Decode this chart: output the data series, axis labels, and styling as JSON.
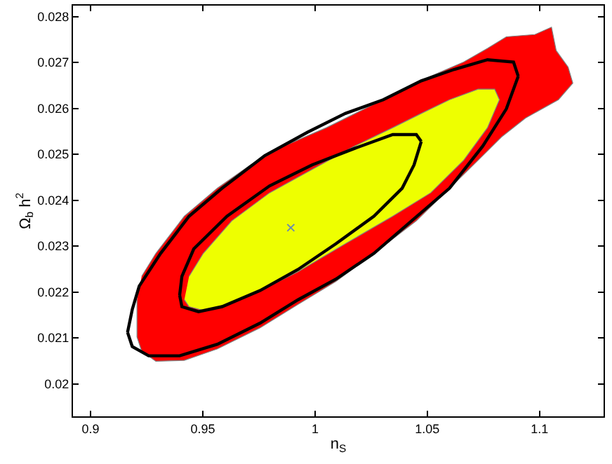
{
  "chart_data": {
    "type": "area",
    "xlabel": "n$_{S}$",
    "ylabel": "Ω$_{b}$ h$^{2}$",
    "xlim": [
      0.8922,
      1.1285
    ],
    "ylim": [
      0.01929,
      0.02824
    ],
    "xticks": [
      0.9,
      0.95,
      1,
      1.05,
      1.1
    ],
    "yticks": [
      0.02,
      0.021,
      0.022,
      0.023,
      0.024,
      0.025,
      0.026,
      0.027,
      0.028
    ],
    "series": [
      {
        "color": "#ff0000",
        "x": [
          0.9207,
          0.9207,
          0.9228,
          0.9291,
          0.9418,
          0.9565,
          0.9755,
          0.9924,
          1.0093,
          1.0262,
          1.0451,
          1.0599,
          1.0726,
          1.0831,
          1.0937,
          1.1084,
          1.1148,
          1.1127,
          1.1074,
          1.1053,
          1.0979,
          1.0852,
          1.0768,
          1.0662,
          1.0515,
          1.0388,
          1.0241,
          1.0051,
          0.9861,
          0.9713,
          0.9565,
          0.9418,
          0.9291,
          0.9228
        ],
        "values": [
          0.02183,
          0.02102,
          0.02071,
          0.02049,
          0.02051,
          0.02076,
          0.02122,
          0.02173,
          0.02223,
          0.02284,
          0.02355,
          0.02426,
          0.02487,
          0.02538,
          0.02579,
          0.02619,
          0.02655,
          0.0269,
          0.02726,
          0.02777,
          0.02761,
          0.02756,
          0.02731,
          0.02701,
          0.0267,
          0.0264,
          0.02604,
          0.02558,
          0.02518,
          0.02477,
          0.02426,
          0.02365,
          0.02284,
          0.02234
        ]
      },
      {
        "color": "#eeff00",
        "x": [
          0.9418,
          0.9439,
          0.9502,
          0.9608,
          0.9755,
          0.9924,
          1.0135,
          1.0346,
          1.0515,
          1.0662,
          1.0768,
          1.0821,
          1.08,
          1.0726,
          1.0599,
          1.0473,
          1.0346,
          1.0177,
          0.9987,
          0.9797,
          0.9629,
          0.9502,
          0.9439
        ],
        "values": [
          0.02183,
          0.02168,
          0.0216,
          0.02173,
          0.02203,
          0.02244,
          0.02305,
          0.02365,
          0.02416,
          0.02487,
          0.02558,
          0.02619,
          0.02642,
          0.02642,
          0.02619,
          0.02589,
          0.02558,
          0.02518,
          0.02467,
          0.02416,
          0.02355,
          0.02284,
          0.02234
        ]
      },
      {
        "type": "line",
        "color": "#000000",
        "x": [
          0.9165,
          0.9186,
          0.9259,
          0.9397,
          0.9565,
          0.9755,
          0.9924,
          1.0093,
          1.0262,
          1.043,
          1.0599,
          1.0747,
          1.0852,
          1.0905,
          null,
          0.9165,
          0.9186,
          0.9217,
          0.9312,
          0.9439,
          0.9586,
          0.9776,
          0.9966,
          1.0135,
          1.0304,
          1.0473,
          1.062,
          1.0768,
          1.0884,
          1.0905
        ],
        "values": [
          0.02112,
          0.02081,
          0.02061,
          0.02061,
          0.02086,
          0.02132,
          0.02183,
          0.02228,
          0.02284,
          0.02355,
          0.02426,
          0.02518,
          0.02599,
          0.0267,
          null,
          0.02112,
          0.02162,
          0.02213,
          0.02284,
          0.02365,
          0.02426,
          0.02497,
          0.02548,
          0.02589,
          0.02619,
          0.0266,
          0.02685,
          0.02706,
          0.02701,
          0.0267
        ]
      },
      {
        "type": "line",
        "color": "#000000",
        "x": [
          0.9397,
          0.9407,
          0.9481,
          0.9586,
          0.9755,
          0.9924,
          1.0093,
          1.0262,
          1.0388,
          1.0441,
          1.0473,
          null,
          0.9397,
          0.9407,
          0.946,
          0.9608,
          0.9797,
          0.9987,
          1.0177,
          1.0346,
          1.0451,
          1.0473
        ],
        "values": [
          0.02193,
          0.02168,
          0.02157,
          0.02168,
          0.02203,
          0.02249,
          0.02305,
          0.02365,
          0.02426,
          0.02477,
          0.02528,
          null,
          0.02193,
          0.02234,
          0.02294,
          0.02365,
          0.02431,
          0.02477,
          0.02513,
          0.02543,
          0.02543,
          0.02528
        ]
      },
      {
        "type": "scatter",
        "color": "#6a8caf",
        "marker": "cross",
        "x": [
          0.9892
        ],
        "values": [
          0.0234
        ]
      }
    ]
  }
}
